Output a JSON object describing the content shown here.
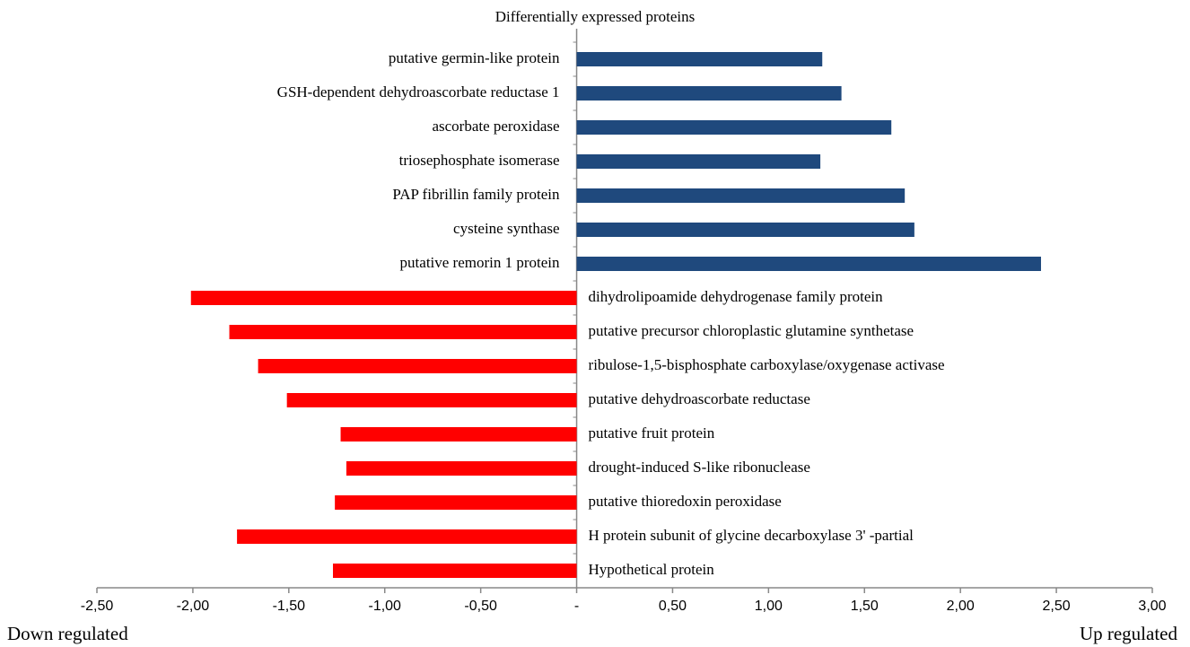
{
  "chart_data": {
    "type": "diverging-bar",
    "title": "Differentially expressed proteins",
    "categories": [
      "putative germin-like protein",
      "GSH-dependent dehydroascorbate reductase 1",
      "ascorbate peroxidase",
      "triosephosphate isomerase",
      "PAP fibrillin family protein",
      "cysteine synthase",
      "putative remorin 1 protein",
      "dihydrolipoamide dehydrogenase family protein",
      "putative precursor chloroplastic glutamine synthetase",
      "ribulose-1,5-bisphosphate carboxylase/oxygenase activase",
      "putative dehydroascorbate reductase",
      "putative fruit protein",
      "drought-induced S-like ribonuclease",
      "putative thioredoxin peroxidase",
      "H protein subunit of glycine decarboxylase 3' -partial",
      "Hypothetical protein"
    ],
    "values": [
      1.28,
      1.38,
      1.64,
      1.27,
      1.71,
      1.76,
      2.42,
      -2.01,
      -1.81,
      -1.66,
      -1.51,
      -1.23,
      -1.2,
      -1.26,
      -1.77,
      -1.27
    ],
    "positive_color": "#1f497d",
    "negative_color": "#ff0000",
    "xlim": [
      -2.5,
      3.0
    ],
    "xticks": [
      {
        "value": -2.5,
        "label": "-2,50"
      },
      {
        "value": -2.0,
        "label": "-2,00"
      },
      {
        "value": -1.5,
        "label": "-1,50"
      },
      {
        "value": -1.0,
        "label": "-1,00"
      },
      {
        "value": -0.5,
        "label": "-0,50"
      },
      {
        "value": 0,
        "label": "-"
      },
      {
        "value": 0.5,
        "label": "0,50"
      },
      {
        "value": 1.0,
        "label": "1,00"
      },
      {
        "value": 1.5,
        "label": "1,50"
      },
      {
        "value": 2.0,
        "label": "2,00"
      },
      {
        "value": 2.5,
        "label": "2,50"
      },
      {
        "value": 3.0,
        "label": "3,00"
      }
    ],
    "left_annotation": "Down regulated",
    "right_annotation": "Up regulated"
  }
}
